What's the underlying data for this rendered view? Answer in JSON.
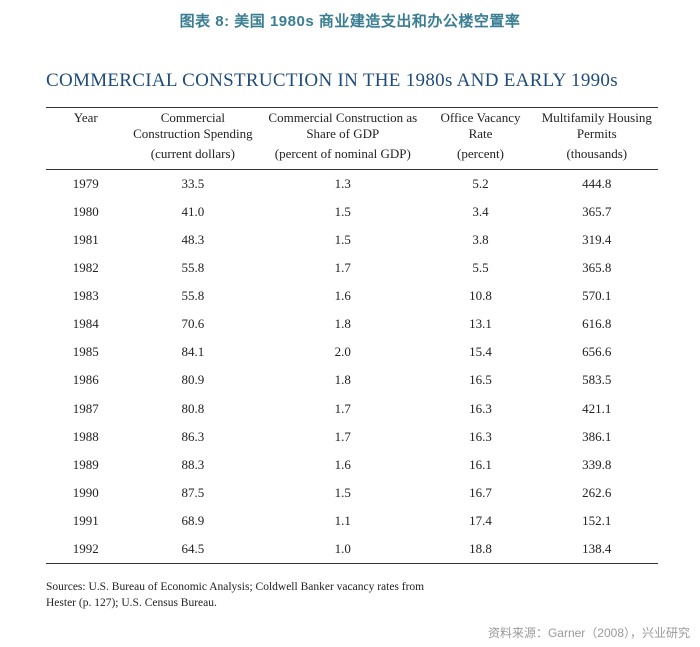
{
  "topCaption": "图表 8:   美国 1980s 商业建造支出和办公楼空置率",
  "title": "COMMERCIAL CONSTRUCTION IN THE 1980s AND EARLY 1990s",
  "columns": {
    "c0": {
      "head": "Year",
      "sub": ""
    },
    "c1": {
      "head": "Commercial Construction Spending",
      "sub": "(current dollars)"
    },
    "c2": {
      "head": "Commercial Construction as Share of GDP",
      "sub": "(percent of nominal GDP)"
    },
    "c3": {
      "head": "Office Vacancy Rate",
      "sub": "(percent)"
    },
    "c4": {
      "head": "Multifamily Housing Permits",
      "sub": "(thousands)"
    }
  },
  "rows": [
    {
      "year": "1979",
      "sp": "33.5",
      "gdp": "1.3",
      "vac": "5.2",
      "mhp": "444.8"
    },
    {
      "year": "1980",
      "sp": "41.0",
      "gdp": "1.5",
      "vac": "3.4",
      "mhp": "365.7"
    },
    {
      "year": "1981",
      "sp": "48.3",
      "gdp": "1.5",
      "vac": "3.8",
      "mhp": "319.4"
    },
    {
      "year": "1982",
      "sp": "55.8",
      "gdp": "1.7",
      "vac": "5.5",
      "mhp": "365.8"
    },
    {
      "year": "1983",
      "sp": "55.8",
      "gdp": "1.6",
      "vac": "10.8",
      "mhp": "570.1"
    },
    {
      "year": "1984",
      "sp": "70.6",
      "gdp": "1.8",
      "vac": "13.1",
      "mhp": "616.8"
    },
    {
      "year": "1985",
      "sp": "84.1",
      "gdp": "2.0",
      "vac": "15.4",
      "mhp": "656.6"
    },
    {
      "year": "1986",
      "sp": "80.9",
      "gdp": "1.8",
      "vac": "16.5",
      "mhp": "583.5"
    },
    {
      "year": "1987",
      "sp": "80.8",
      "gdp": "1.7",
      "vac": "16.3",
      "mhp": "421.1"
    },
    {
      "year": "1988",
      "sp": "86.3",
      "gdp": "1.7",
      "vac": "16.3",
      "mhp": "386.1"
    },
    {
      "year": "1989",
      "sp": "88.3",
      "gdp": "1.6",
      "vac": "16.1",
      "mhp": "339.8"
    },
    {
      "year": "1990",
      "sp": "87.5",
      "gdp": "1.5",
      "vac": "16.7",
      "mhp": "262.6"
    },
    {
      "year": "1991",
      "sp": "68.9",
      "gdp": "1.1",
      "vac": "17.4",
      "mhp": "152.1"
    },
    {
      "year": "1992",
      "sp": "64.5",
      "gdp": "1.0",
      "vac": "18.8",
      "mhp": "138.4"
    }
  ],
  "sourcesLine1": "Sources: U.S. Bureau of Economic Analysis; Coldwell Banker vacancy rates from",
  "sourcesLine2": "Hester (p. 127); U.S. Census Bureau.",
  "footerCredit": "资料来源：Garner（2008），兴业研究",
  "style": {
    "captionColor": "#3a7e93",
    "titleColor": "#1f4b7a",
    "ruleColor": "#333333",
    "bodyFont": "Times New Roman / Georgia serif",
    "cjkFont": "Microsoft YaHei / PingFang SC",
    "background": "#ffffff",
    "creditColor": "#9a9a9a",
    "columnWidthsPct": [
      13,
      22,
      27,
      18,
      20
    ],
    "bodyFontSizePt": 13,
    "titleFontSizePt": 19,
    "captionFontSizePt": 15
  }
}
